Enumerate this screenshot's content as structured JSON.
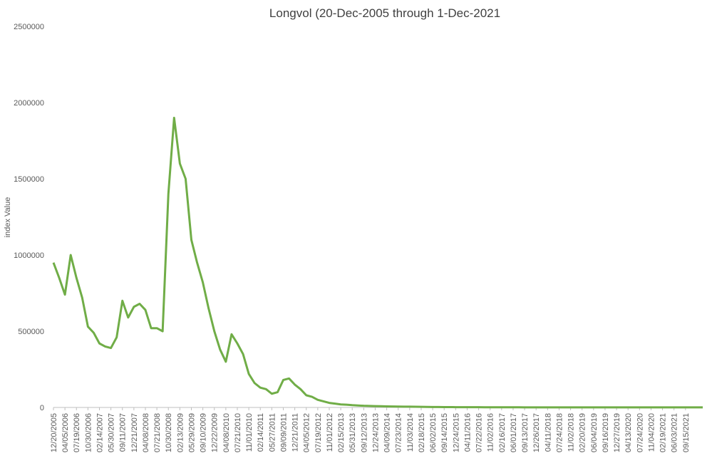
{
  "chart_data": {
    "type": "line",
    "title": "Longvol (20-Dec-2005 through 1-Dec-2021",
    "y_label": "index Value",
    "categories": [
      "12/20/2005",
      null,
      "04/05/2006",
      null,
      "07/19/2006",
      null,
      "10/30/2006",
      null,
      "02/14/2007",
      null,
      "05/30/2007",
      null,
      "09/11/2007",
      null,
      "12/21/2007",
      null,
      "04/08/2008",
      null,
      "07/21/2008",
      null,
      "10/30/2008",
      null,
      "02/13/2009",
      null,
      "05/29/2009",
      null,
      "09/10/2009",
      null,
      "12/22/2009",
      null,
      "04/08/2010",
      null,
      "07/21/2010",
      null,
      "11/01/2010",
      null,
      "02/14/2011",
      null,
      "05/27/2011",
      null,
      "09/09/2011",
      null,
      "12/21/2011",
      null,
      "04/05/2012",
      null,
      "07/19/2012",
      null,
      "11/01/2012",
      null,
      "02/15/2013",
      null,
      "05/31/2013",
      null,
      "09/12/2013",
      null,
      "12/24/2013",
      null,
      "04/09/2014",
      null,
      "07/23/2014",
      null,
      "11/03/2014",
      null,
      "02/18/2015",
      null,
      "06/02/2015",
      null,
      "09/14/2015",
      null,
      "12/24/2015",
      null,
      "04/11/2016",
      null,
      "07/22/2016",
      null,
      "11/02/2016",
      null,
      "02/16/2017",
      null,
      "06/01/2017",
      null,
      "09/13/2017",
      null,
      "12/26/2017",
      null,
      "04/11/2018",
      null,
      "07/24/2018",
      null,
      "11/02/2018",
      null,
      "02/20/2019",
      null,
      "06/04/2019",
      null,
      "09/16/2019",
      null,
      "12/27/2019",
      null,
      "04/13/2020",
      null,
      "07/24/2020",
      null,
      "11/04/2020",
      null,
      "02/19/2021",
      null,
      "06/03/2021",
      null,
      "09/15/2021",
      null,
      null,
      null
    ],
    "series": [
      {
        "name": "Longvol",
        "color": "#70ad47",
        "values": [
          950000,
          850000,
          740000,
          1000000,
          850000,
          720000,
          530000,
          490000,
          420000,
          400000,
          390000,
          460000,
          700000,
          590000,
          660000,
          680000,
          640000,
          520000,
          520000,
          500000,
          1400000,
          1900000,
          1600000,
          1500000,
          1100000,
          950000,
          820000,
          650000,
          500000,
          380000,
          300000,
          480000,
          420000,
          350000,
          220000,
          160000,
          130000,
          120000,
          90000,
          100000,
          180000,
          190000,
          150000,
          120000,
          80000,
          70000,
          50000,
          40000,
          30000,
          25000,
          20000,
          18000,
          15000,
          13000,
          11000,
          10000,
          9000,
          8000,
          7000,
          6500,
          6000,
          5500,
          5000,
          4500,
          4000,
          3500,
          3000,
          3000,
          2500,
          2500,
          2000,
          2000,
          1800,
          1600,
          1500,
          1400,
          1300,
          1200,
          1100,
          1000,
          900,
          900,
          800,
          800,
          800,
          700,
          700,
          700,
          700,
          600,
          600,
          600,
          600,
          600,
          600,
          600,
          500,
          500,
          500,
          500,
          500,
          500,
          500,
          500,
          500,
          500,
          500,
          500,
          500,
          500,
          500,
          500,
          500,
          500
        ]
      }
    ],
    "ylim": [
      0,
      2500000
    ],
    "yticks": [
      0,
      500000,
      1000000,
      1500000,
      2000000,
      2500000
    ],
    "grid": false
  }
}
